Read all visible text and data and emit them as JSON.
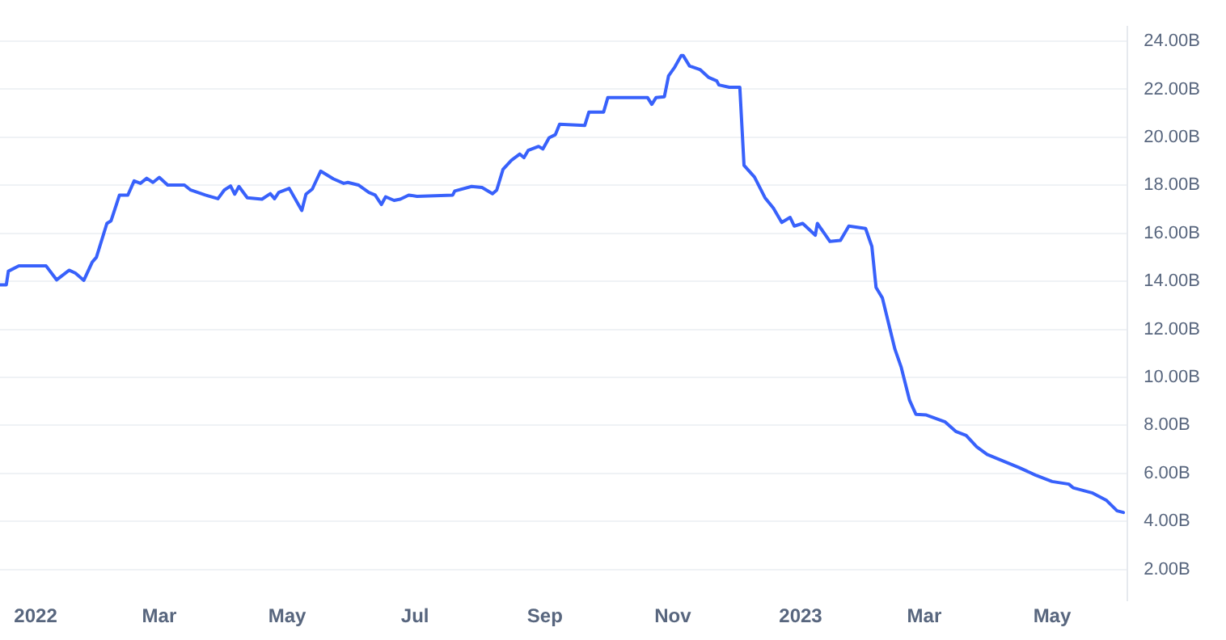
{
  "chart_data": {
    "type": "line",
    "xlim": [
      "2021-12-15",
      "2023-06-06"
    ],
    "ylim": [
      0.7,
      24.6
    ],
    "xticks": [
      {
        "value": "2022-01-01",
        "label": "2022"
      },
      {
        "value": "2022-03-01",
        "label": "Mar"
      },
      {
        "value": "2022-05-01",
        "label": "May"
      },
      {
        "value": "2022-07-01",
        "label": "Jul"
      },
      {
        "value": "2022-09-01",
        "label": "Sep"
      },
      {
        "value": "2022-11-01",
        "label": "Nov"
      },
      {
        "value": "2023-01-01",
        "label": "2023"
      },
      {
        "value": "2023-03-01",
        "label": "Mar"
      },
      {
        "value": "2023-05-01",
        "label": "May"
      }
    ],
    "yticks": [
      {
        "value": 2,
        "label": "2.00B"
      },
      {
        "value": 4,
        "label": "4.00B"
      },
      {
        "value": 6,
        "label": "6.00B"
      },
      {
        "value": 8,
        "label": "8.00B"
      },
      {
        "value": 10,
        "label": "10.00B"
      },
      {
        "value": 12,
        "label": "12.00B"
      },
      {
        "value": 14,
        "label": "14.00B"
      },
      {
        "value": 16,
        "label": "16.00B"
      },
      {
        "value": 18,
        "label": "18.00B"
      },
      {
        "value": 20,
        "label": "20.00B"
      },
      {
        "value": 22,
        "label": "22.00B"
      },
      {
        "value": 24,
        "label": "24.00B"
      }
    ],
    "grid": "y",
    "legend": false,
    "marker": "none",
    "line_style": "solid",
    "series": [
      {
        "color": "#3861fb",
        "x": [
          "2021-12-15",
          "2021-12-18",
          "2021-12-19",
          "2021-12-24",
          "2022-01-06",
          "2022-01-11",
          "2022-01-17",
          "2022-01-20",
          "2022-01-24",
          "2022-01-28",
          "2022-01-30",
          "2022-02-04",
          "2022-02-06",
          "2022-02-10",
          "2022-02-14",
          "2022-02-17",
          "2022-02-20",
          "2022-02-23",
          "2022-02-26",
          "2022-03-01",
          "2022-03-05",
          "2022-03-13",
          "2022-03-16",
          "2022-03-23",
          "2022-03-29",
          "2022-04-01",
          "2022-04-04",
          "2022-04-06",
          "2022-04-08",
          "2022-04-12",
          "2022-04-19",
          "2022-04-23",
          "2022-04-25",
          "2022-04-27",
          "2022-05-02",
          "2022-05-08",
          "2022-05-10",
          "2022-05-13",
          "2022-05-17",
          "2022-05-23",
          "2022-05-28",
          "2022-05-30",
          "2022-06-04",
          "2022-06-09",
          "2022-06-12",
          "2022-06-15",
          "2022-06-17",
          "2022-06-21",
          "2022-06-24",
          "2022-06-28",
          "2022-07-02",
          "2022-07-19",
          "2022-07-20",
          "2022-07-28",
          "2022-08-02",
          "2022-08-07",
          "2022-08-09",
          "2022-08-12",
          "2022-08-16",
          "2022-08-20",
          "2022-08-22",
          "2022-08-24",
          "2022-08-29",
          "2022-08-31",
          "2022-09-03",
          "2022-09-06",
          "2022-09-08",
          "2022-09-20",
          "2022-09-22",
          "2022-09-29",
          "2022-10-01",
          "2022-10-20",
          "2022-10-22",
          "2022-10-24",
          "2022-10-28",
          "2022-10-30",
          "2022-11-02",
          "2022-11-05",
          "2022-11-06",
          "2022-11-09",
          "2022-11-14",
          "2022-11-18",
          "2022-11-22",
          "2022-11-23",
          "2022-11-28",
          "2022-12-03",
          "2022-12-05",
          "2022-12-10",
          "2022-12-15",
          "2022-12-19",
          "2022-12-23",
          "2022-12-27",
          "2022-12-29",
          "2023-01-02",
          "2023-01-08",
          "2023-01-09",
          "2023-01-15",
          "2023-01-20",
          "2023-01-24",
          "2023-02-01",
          "2023-02-04",
          "2023-02-06",
          "2023-02-09",
          "2023-02-15",
          "2023-02-18",
          "2023-02-22",
          "2023-02-25",
          "2023-03-02",
          "2023-03-11",
          "2023-03-16",
          "2023-03-21",
          "2023-03-26",
          "2023-03-31",
          "2023-04-15",
          "2023-04-23",
          "2023-05-01",
          "2023-05-09",
          "2023-05-11",
          "2023-05-20",
          "2023-05-27",
          "2023-06-01",
          "2023-06-04"
        ],
        "values": [
          13.85,
          13.85,
          14.42,
          14.64,
          14.64,
          14.06,
          14.46,
          14.34,
          14.04,
          14.8,
          15.0,
          16.41,
          16.52,
          17.59,
          17.59,
          18.18,
          18.08,
          18.29,
          18.12,
          18.33,
          18.01,
          18.01,
          17.8,
          17.59,
          17.44,
          17.8,
          17.97,
          17.63,
          17.95,
          17.48,
          17.42,
          17.65,
          17.44,
          17.7,
          17.87,
          16.95,
          17.63,
          17.84,
          18.59,
          18.27,
          18.08,
          18.12,
          18.01,
          17.7,
          17.59,
          17.2,
          17.52,
          17.37,
          17.42,
          17.59,
          17.54,
          17.59,
          17.76,
          17.95,
          17.91,
          17.65,
          17.8,
          18.66,
          19.04,
          19.3,
          19.15,
          19.45,
          19.62,
          19.51,
          19.98,
          20.11,
          20.54,
          20.49,
          21.05,
          21.05,
          21.65,
          21.65,
          21.37,
          21.65,
          21.69,
          22.56,
          22.93,
          23.4,
          23.4,
          22.97,
          22.82,
          22.5,
          22.35,
          22.18,
          22.08,
          22.08,
          18.83,
          18.34,
          17.48,
          17.05,
          16.45,
          16.66,
          16.3,
          16.41,
          15.92,
          16.41,
          15.66,
          15.7,
          16.3,
          16.2,
          15.45,
          13.74,
          13.31,
          11.17,
          10.42,
          9.04,
          8.46,
          8.43,
          8.14,
          7.75,
          7.58,
          7.11,
          6.79,
          6.25,
          5.93,
          5.66,
          5.55,
          5.4,
          5.19,
          4.87,
          4.44,
          4.37
        ]
      }
    ]
  }
}
